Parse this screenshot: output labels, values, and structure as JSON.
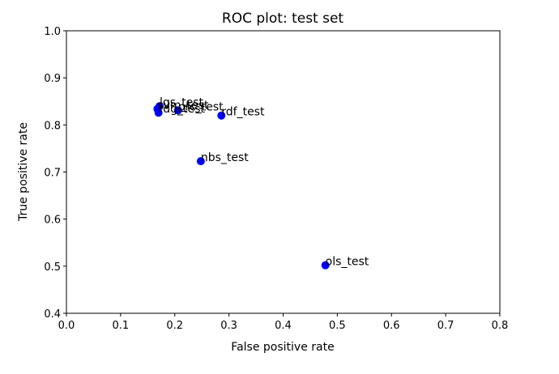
{
  "chart_data": {
    "type": "scatter",
    "title": "ROC plot: test set",
    "xlabel": "False positive rate",
    "ylabel": "True positive rate",
    "xlim": [
      0.0,
      0.8
    ],
    "ylim": [
      0.4,
      1.0
    ],
    "grid": false,
    "x_ticks": [
      "0.0",
      "0.1",
      "0.2",
      "0.3",
      "0.4",
      "0.5",
      "0.6",
      "0.7",
      "0.8"
    ],
    "y_ticks": [
      "0.4",
      "0.5",
      "0.6",
      "0.7",
      "0.8",
      "0.9",
      "1.0"
    ],
    "marker_color": "#0000ff",
    "points": [
      {
        "label": "lgs_test",
        "x": 0.172,
        "y": 0.84
      },
      {
        "label": "svm_test",
        "x": 0.168,
        "y": 0.834
      },
      {
        "label": "rdg_test",
        "x": 0.17,
        "y": 0.826
      },
      {
        "label": "prc_test",
        "x": 0.206,
        "y": 0.831
      },
      {
        "label": "rdf_test",
        "x": 0.286,
        "y": 0.82
      },
      {
        "label": "nbs_test",
        "x": 0.248,
        "y": 0.723
      },
      {
        "label": "ols_test",
        "x": 0.478,
        "y": 0.502
      }
    ]
  }
}
